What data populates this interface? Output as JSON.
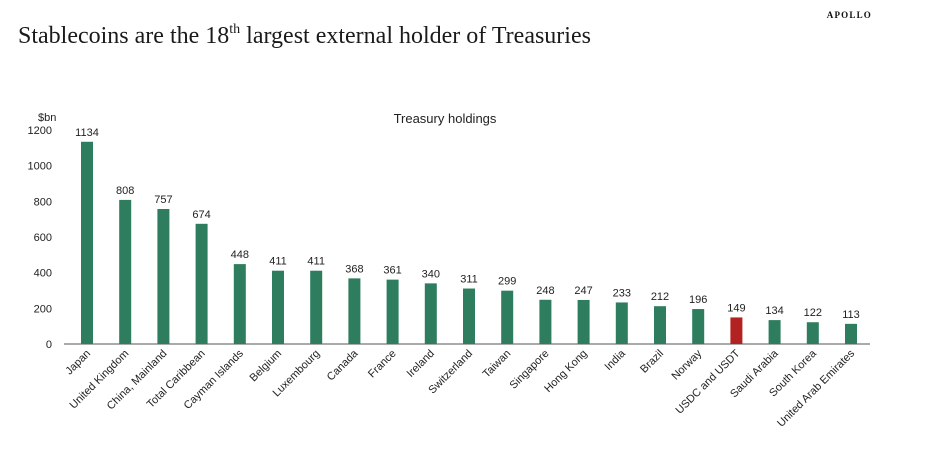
{
  "header": {
    "brand": "APOLLO",
    "title_pre": "Stablecoins are the 18",
    "title_sup": "th",
    "title_post": " largest external holder of Treasuries"
  },
  "colors": {
    "bar": "#2e7d5e",
    "highlight": "#b22222",
    "axis": "#555555"
  },
  "chart_data": {
    "type": "bar",
    "title": "Treasury holdings",
    "ylabel": "$bn",
    "xlabel": "",
    "ylim": [
      0,
      1200
    ],
    "yticks": [
      0,
      200,
      400,
      600,
      800,
      1000,
      1200
    ],
    "grid": false,
    "highlight_category": "USDC and USDT",
    "categories": [
      "Japan",
      "United Kingdom",
      "China, Mainland",
      "Total Caribbean",
      "Cayman Islands",
      "Belgium",
      "Luxembourg",
      "Canada",
      "France",
      "Ireland",
      "Switzerland",
      "Taiwan",
      "Singapore",
      "Hong Kong",
      "India",
      "Brazil",
      "Norway",
      "USDC and USDT",
      "Saudi Arabia",
      "South Korea",
      "United Arab Emirates"
    ],
    "values": [
      1134,
      808,
      757,
      674,
      448,
      411,
      411,
      368,
      361,
      340,
      311,
      299,
      248,
      247,
      233,
      212,
      196,
      149,
      134,
      122,
      113
    ]
  }
}
